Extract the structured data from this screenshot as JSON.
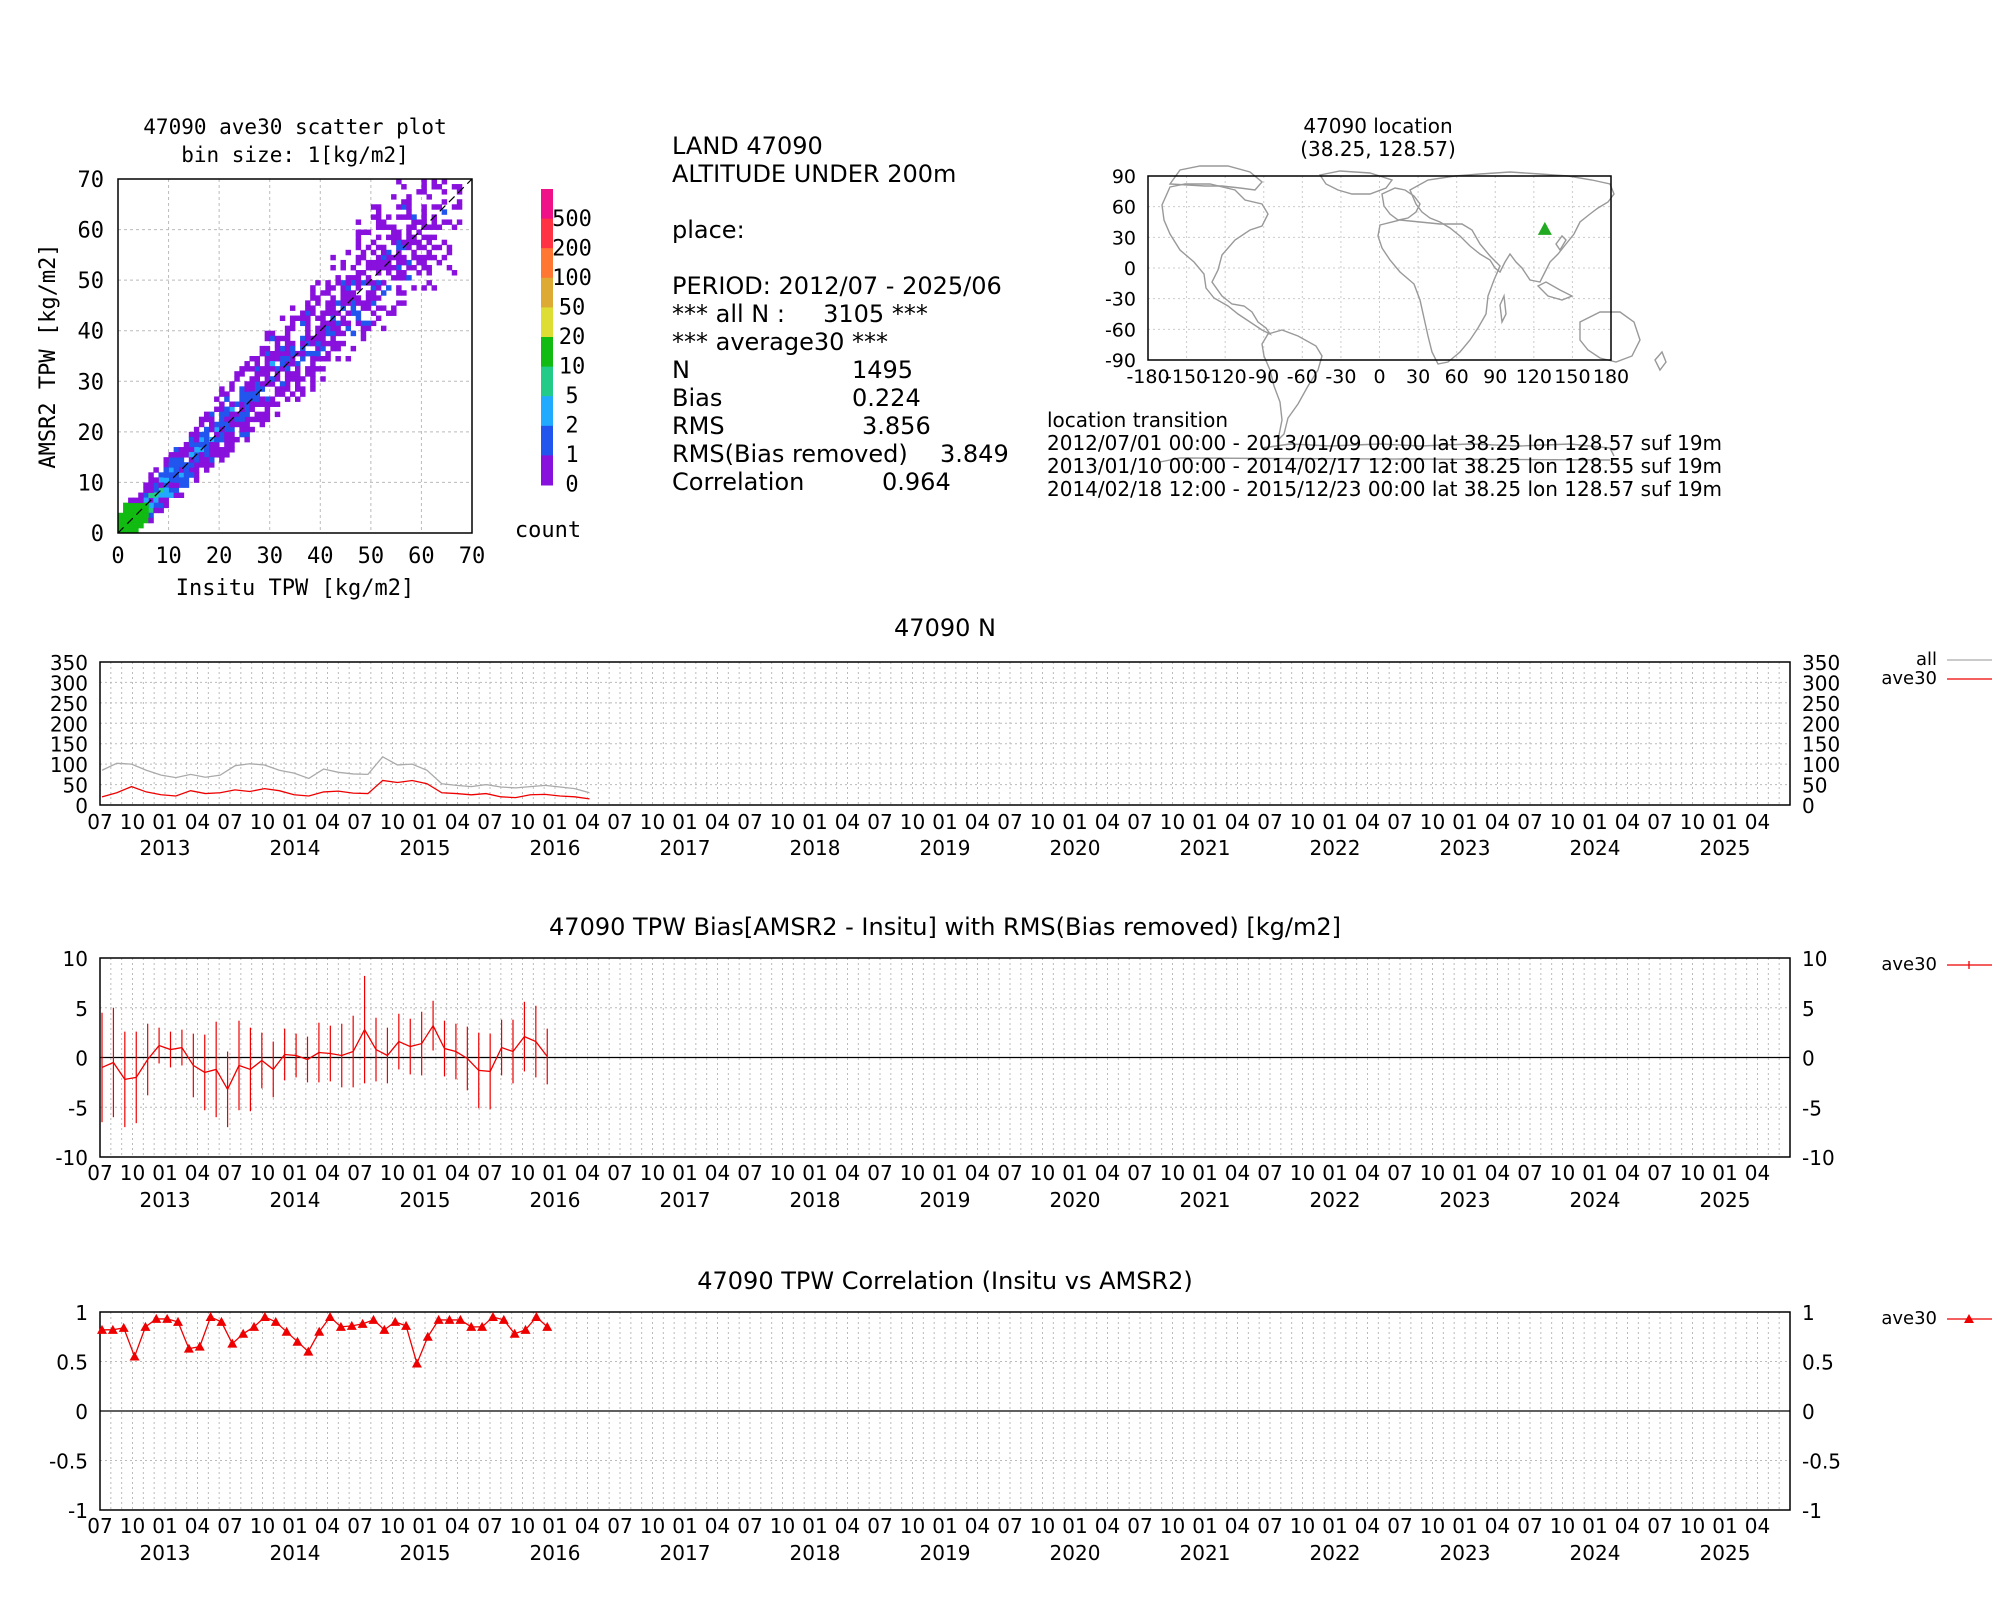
{
  "scatter": {
    "title_line1": "47090 ave30 scatter plot",
    "title_line2": "bin size: 1[kg/m2]",
    "xlabel": "Insitu TPW [kg/m2]",
    "ylabel": "AMSR2 TPW [kg/m2]",
    "ticks": [
      "0",
      "10",
      "20",
      "30",
      "40",
      "50",
      "60",
      "70"
    ],
    "colorbar_labels": [
      "500",
      "200",
      "100",
      "50",
      "20",
      "10",
      "5",
      "2",
      "1",
      "0"
    ],
    "colorbar_title": "count",
    "colors": [
      "#ee1188",
      "#ff3344",
      "#ff7733",
      "#ddaa33",
      "#dddd33",
      "#11bb11",
      "#22cc88",
      "#22aaff",
      "#2255ee",
      "#8811dd"
    ]
  },
  "stats": {
    "line1": "LAND 47090",
    "line2": "ALTITUDE UNDER 200m",
    "line3": "place:",
    "period": "PERIOD: 2012/07 - 2025/06",
    "all_n": "*** all N :     3105 ***",
    "avg_header": "*** average30 ***",
    "rows": [
      {
        "label": "N",
        "value": "1495"
      },
      {
        "label": "Bias",
        "value": "0.224"
      },
      {
        "label": "RMS",
        "value": "3.856"
      },
      {
        "label": "RMS(Bias removed)",
        "value": "3.849"
      },
      {
        "label": "Correlation",
        "value": "0.964"
      }
    ]
  },
  "map": {
    "title_line1": "47090 location",
    "title_line2": "(38.25, 128.57)",
    "lat_ticks": [
      "90",
      "60",
      "30",
      "0",
      "-30",
      "-60",
      "-90"
    ],
    "lon_ticks": [
      "-180",
      "-150",
      "-120",
      "-90",
      "-60",
      "-30",
      "0",
      "30",
      "60",
      "90",
      "120",
      "150",
      "180"
    ],
    "station_lat": 38.25,
    "station_lon": 128.57,
    "marker_color": "#22aa22"
  },
  "transition": {
    "title": "location transition",
    "lines": [
      "2012/07/01 00:00 - 2013/01/09 00:00 lat 38.25 lon 128.57 suf 19m",
      "2013/01/10 00:00 - 2014/02/17 12:00 lat 38.25 lon 128.55 suf 19m",
      "2014/02/18 12:00 - 2015/12/23 00:00 lat 38.25 lon 128.57 suf 19m"
    ]
  },
  "time_axis": {
    "month_labels": [
      "07",
      "10",
      "01",
      "04"
    ],
    "years": [
      "2013",
      "2014",
      "2015",
      "2016",
      "2017",
      "2018",
      "2019",
      "2020",
      "2021",
      "2022",
      "2023",
      "2024",
      "2025"
    ]
  },
  "chart_data": [
    {
      "type": "line",
      "title": "47090 N",
      "ylim": [
        0,
        350
      ],
      "yticks": [
        "350",
        "300",
        "250",
        "200",
        "150",
        "100",
        "50",
        "0"
      ],
      "series": [
        {
          "name": "all",
          "color": "#aaaaaa",
          "values": [
            85,
            102,
            100,
            85,
            73,
            67,
            75,
            68,
            73,
            96,
            101,
            98,
            85,
            78,
            65,
            88,
            80,
            76,
            75,
            118,
            98,
            100,
            85,
            52,
            48,
            45,
            50,
            44,
            42,
            45,
            48,
            44,
            40,
            30
          ]
        },
        {
          "name": "ave30",
          "color": "#ee0000",
          "values": [
            20,
            30,
            45,
            32,
            25,
            22,
            35,
            28,
            30,
            37,
            33,
            40,
            35,
            25,
            22,
            32,
            34,
            29,
            28,
            60,
            55,
            60,
            52,
            30,
            28,
            25,
            28,
            20,
            18,
            25,
            26,
            22,
            20,
            15
          ]
        }
      ]
    },
    {
      "type": "line",
      "title": "47090 TPW Bias[AMSR2 - Insitu] with RMS(Bias removed) [kg/m2]",
      "ylim": [
        -10,
        10
      ],
      "yticks": [
        "10",
        "5",
        "0",
        "-5",
        "-10"
      ],
      "series": [
        {
          "name": "ave30",
          "color": "#ee0000",
          "values": [
            -1.0,
            -0.5,
            -2.2,
            -2.0,
            -0.2,
            1.2,
            0.8,
            1.0,
            -0.8,
            -1.5,
            -1.2,
            -3.2,
            -0.8,
            -1.2,
            -0.3,
            -1.2,
            0.3,
            0.2,
            -0.2,
            0.5,
            0.4,
            0.2,
            0.6,
            2.8,
            0.8,
            0.2,
            1.6,
            1.1,
            1.4,
            3.2,
            0.9,
            0.6,
            -0.1,
            -1.3,
            -1.4,
            1.0,
            0.6,
            2.1,
            1.6,
            0.1
          ],
          "err": [
            5.5,
            5.5,
            4.8,
            4.6,
            3.6,
            1.8,
            1.8,
            1.8,
            3.2,
            3.8,
            4.8,
            3.8,
            4.5,
            4.2,
            2.8,
            2.8,
            2.6,
            2.2,
            2.3,
            3.0,
            2.8,
            3.2,
            3.6,
            5.4,
            3.2,
            2.8,
            2.8,
            2.8,
            3.2,
            2.5,
            2.8,
            2.8,
            3.2,
            3.8,
            3.8,
            2.8,
            3.2,
            3.5,
            3.6,
            2.8
          ]
        }
      ]
    },
    {
      "type": "line",
      "title": "47090 TPW Correlation (Insitu vs AMSR2)",
      "ylim": [
        -1,
        1
      ],
      "yticks": [
        "1",
        "0.5",
        "0",
        "-0.5",
        "-1"
      ],
      "series": [
        {
          "name": "ave30",
          "color": "#ee0000",
          "values": [
            0.82,
            0.82,
            0.84,
            0.55,
            0.85,
            0.93,
            0.93,
            0.9,
            0.63,
            0.65,
            0.95,
            0.9,
            0.68,
            0.78,
            0.85,
            0.95,
            0.9,
            0.8,
            0.7,
            0.6,
            0.8,
            0.95,
            0.85,
            0.86,
            0.88,
            0.92,
            0.82,
            0.9,
            0.86,
            0.48,
            0.75,
            0.92,
            0.92,
            0.92,
            0.85,
            0.85,
            0.95,
            0.92,
            0.78,
            0.82,
            0.95,
            0.85
          ]
        }
      ]
    }
  ]
}
